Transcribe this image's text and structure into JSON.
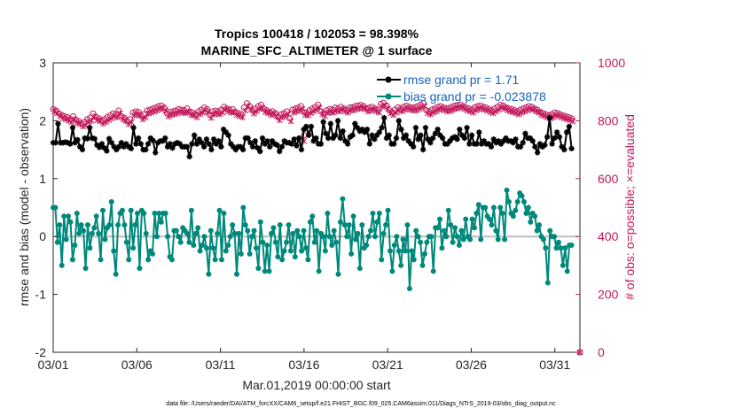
{
  "chart_data": {
    "type": "line",
    "title_line1": "Tropics 100418 / 102053 = 98.398%",
    "title_line2": "MARINE_SFC_ALTIMETER @ 1 surface",
    "ylabel": "rmse and bias (model - observation)",
    "ylabel_right": "# of obs: o=possible; ×=evaluated",
    "xlabel": "Mar.01,2019 00:00:00 start",
    "footnote": "data file: /Users/raeder/DAI/ATM_forcXX/CAM6_setup/f.e21.FHIST_BGC.f09_025.CAM6assim.011/Diags_NTrS_2019-03/obs_diag_output.nc",
    "ylim": [
      -2,
      3
    ],
    "ylim_right": [
      0,
      1000
    ],
    "xlim": [
      0,
      31.5
    ],
    "x_ticks": [
      0,
      5,
      10,
      15,
      20,
      25,
      30
    ],
    "x_tick_labels": [
      "03/01",
      "03/06",
      "03/11",
      "03/16",
      "03/21",
      "03/26",
      "03/31"
    ],
    "y_ticks": [
      -2,
      -1,
      0,
      1,
      2,
      3
    ],
    "y_tick_labels": [
      "-2",
      "-1",
      "0",
      "1",
      "2",
      "3"
    ],
    "y_ticks_right": [
      0,
      200,
      400,
      600,
      800,
      1000
    ],
    "y_tick_labels_right": [
      "0",
      "200",
      "400",
      "600",
      "800",
      "1000"
    ],
    "legend": {
      "rmse": "rmse grand pr = 1.71",
      "bias": "bias grand pr = -0.023878"
    },
    "colors": {
      "rmse": "#000000",
      "bias": "#00897b",
      "obs": "#c2185b",
      "zero_line": "#bdbdbd",
      "legend_text": "#1565c0"
    },
    "rmse": [
      1.62,
      1.62,
      1.95,
      1.62,
      1.62,
      1.63,
      1.62,
      1.6,
      1.88,
      1.62,
      1.67,
      1.55,
      1.5,
      1.7,
      1.69,
      1.88,
      1.7,
      1.69,
      1.58,
      1.54,
      1.6,
      1.53,
      1.48,
      1.69,
      1.62,
      1.55,
      1.5,
      1.55,
      1.62,
      1.55,
      1.6,
      1.55,
      1.52,
      1.88,
      1.6,
      1.7,
      1.6,
      1.5,
      1.5,
      1.6,
      1.7,
      1.66,
      1.45,
      1.62,
      1.65,
      1.65,
      1.7,
      1.55,
      1.6,
      1.53,
      1.6,
      1.62,
      1.6,
      1.55,
      1.55,
      1.55,
      1.38,
      1.6,
      1.75,
      1.6,
      1.68,
      1.62,
      1.55,
      1.68,
      1.6,
      1.5,
      1.68,
      1.6,
      1.65,
      1.55,
      1.85,
      1.8,
      1.75,
      1.6,
      1.55,
      1.5,
      1.55,
      1.55,
      1.5,
      1.7,
      1.7,
      1.62,
      1.55,
      1.65,
      1.53,
      1.47,
      1.7,
      1.6,
      1.65,
      1.55,
      1.65,
      1.6,
      1.58,
      1.47,
      1.55,
      1.65,
      1.62,
      1.62,
      1.6,
      1.68,
      1.57,
      1.7,
      1.5,
      1.85,
      1.9,
      1.75,
      1.9,
      1.65,
      1.7,
      1.6,
      1.6,
      1.98,
      1.78,
      1.7,
      1.95,
      1.7,
      1.75,
      2.0,
      1.7,
      1.82,
      1.65,
      1.6,
      1.72,
      1.75,
      1.95,
      1.88,
      1.82,
      1.85,
      1.8,
      1.85,
      1.6,
      1.75,
      1.68,
      1.75,
      1.8,
      1.88,
      2.05,
      1.7,
      1.75,
      1.6,
      1.6,
      1.7,
      2.0,
      1.85,
      1.7,
      1.75,
      1.65,
      1.6,
      1.55,
      1.88,
      1.68,
      1.75,
      1.5,
      1.88,
      1.68,
      1.62,
      1.7,
      1.78,
      1.85,
      1.75,
      1.7,
      1.6,
      1.6,
      1.65,
      1.7,
      1.72,
      1.68,
      1.85,
      1.75,
      1.7,
      1.88,
      1.6,
      1.75,
      1.6,
      1.6,
      1.8,
      1.6,
      1.65,
      1.6,
      1.6,
      1.55,
      1.68,
      1.62,
      1.65,
      1.6,
      1.65,
      1.7,
      1.65,
      1.65,
      1.62,
      1.68,
      1.55,
      1.55,
      1.62,
      1.78,
      1.7,
      1.7,
      1.65,
      1.55,
      1.45,
      1.6,
      1.55,
      1.58,
      1.72,
      2.05,
      1.6,
      1.7,
      1.8,
      1.72,
      1.55,
      1.5,
      1.8,
      1.9,
      1.52
    ],
    "bias": [
      0.5,
      0.5,
      -0.1,
      0.2,
      -0.5,
      0.35,
      -0.05,
      0.35,
      0.25,
      -0.4,
      -0.15,
      0.4,
      0.05,
      0.2,
      0.1,
      -0.55,
      0.2,
      -0.2,
      0.05,
      0.15,
      0.35,
      0.05,
      -0.4,
      0.45,
      -0.05,
      0.15,
      0.2,
      0.6,
      -0.25,
      -0.65,
      0.2,
      0.4,
      0.45,
      0.2,
      -0.1,
      -0.4,
      0.45,
      -0.2,
      0.2,
      0.4,
      -0.55,
      0.45,
      0.4,
      0.05,
      -0.4,
      -0.25,
      -0.3,
      0.4,
      0.0,
      0.4,
      0.25,
      0.4,
      0.4,
      0.0,
      -0.35,
      -0.4,
      0.1,
      0.1,
      0.0,
      -0.1,
      0.15,
      0.1,
      0.05,
      -0.1,
      0.45,
      -0.15,
      0.05,
      0.15,
      -0.25,
      -0.15,
      0.0,
      -0.2,
      -0.65,
      0.1,
      -0.2,
      -0.4,
      0.05,
      0.45,
      -0.4,
      0.4,
      -0.25,
      -0.15,
      0.0,
      0.2,
      0.05,
      -0.65,
      0.05,
      -0.3,
      0.5,
      0.2,
      0.1,
      -0.3,
      0.0,
      0.1,
      -0.2,
      -0.55,
      0.25,
      -0.1,
      -0.6,
      -0.15,
      -0.6,
      0.05,
      0.15,
      -0.1,
      -0.35,
      0.2,
      -0.4,
      -0.25,
      -0.1,
      0.2,
      -0.25,
      0.05,
      -0.35,
      0.1,
      0.0,
      -0.25,
      0.1,
      -0.2,
      -0.4,
      0.25,
      0.35,
      -0.1,
      0.1,
      -0.6,
      0.05,
      0.0,
      -0.25,
      0.4,
      0.0,
      -0.15,
      0.1,
      -0.1,
      -0.65,
      0.25,
      0.65,
      0.2,
      0.0,
      0.2,
      -0.3,
      0.35,
      -0.05,
      0.05,
      -0.55,
      0.2,
      -0.2,
      -0.15,
      0.0,
      0.1,
      0.4,
      0.0,
      0.25,
      0.4,
      -0.4,
      0.05,
      0.2,
      0.45,
      -0.25,
      -0.6,
      -0.15,
      0.0,
      -0.25,
      -0.5,
      -0.05,
      -0.25,
      0.2,
      -0.9,
      -0.25,
      -0.4,
      0.1,
      0.0,
      -0.1,
      -0.5,
      -0.3,
      -0.1,
      0.0,
      0.0,
      -0.6,
      0.15,
      0.15,
      0.3,
      -0.2,
      0.1,
      0.0,
      0.45,
      0.2,
      -0.1,
      0.15,
      0.0,
      -0.15,
      0.1,
      -0.05,
      0.3,
      0.0,
      -0.05,
      0.3,
      0.15,
      0.4,
      0.55,
      -0.05,
      0.5,
      0.5,
      0.35,
      0.3,
      0.2,
      0.5,
      0.1,
      -0.05,
      0.5,
      0.4,
      -0.05,
      0.8,
      0.6,
      0.4,
      0.35,
      0.45,
      0.6,
      0.75,
      0.7,
      0.6,
      0.4,
      0.5,
      0.25,
      0.4,
      0.35,
      0.1,
      0.2,
      0.0,
      -0.05,
      -0.2,
      -0.8,
      0.1,
      0.0,
      0.0,
      -0.2,
      -0.1,
      -0.2,
      -0.5,
      -0.2,
      -0.6,
      -0.15,
      -0.15
    ],
    "obs_possible": [
      840,
      835,
      825,
      820,
      815,
      812,
      805,
      815,
      802,
      798,
      790,
      795,
      805,
      810,
      825,
      812,
      808,
      800,
      805,
      812,
      818,
      825,
      822,
      835,
      815,
      810,
      798,
      805,
      828,
      832,
      830,
      815,
      822,
      835,
      838,
      842,
      845,
      850,
      852,
      845,
      825,
      830,
      832,
      835,
      840,
      838,
      836,
      842,
      830,
      828,
      822,
      832,
      838,
      845,
      840,
      820,
      832,
      835,
      832,
      838,
      848,
      842,
      838,
      840,
      830,
      826,
      822,
      845,
      860,
      850,
      835,
      842,
      850,
      855,
      840,
      836,
      830,
      832,
      826,
      812,
      822,
      826,
      832,
      808,
      838,
      842,
      845,
      850,
      830,
      828,
      836,
      842,
      848,
      855,
      832,
      826,
      836,
      840,
      838,
      845,
      842,
      848,
      842,
      838,
      845,
      846,
      850,
      852,
      854,
      850,
      842,
      845,
      848,
      842,
      838,
      858,
      862,
      852,
      836,
      830,
      838,
      846,
      842,
      848,
      852,
      848,
      845,
      846,
      850,
      855,
      860,
      836,
      832,
      838,
      842,
      848,
      850,
      846,
      842,
      844,
      848,
      852,
      854,
      856,
      850,
      845,
      842,
      838,
      846,
      850,
      852,
      848,
      845,
      840,
      836,
      842,
      848,
      855,
      852,
      846,
      842,
      840,
      836,
      832,
      838,
      842,
      846,
      850,
      848,
      842,
      838,
      830,
      826,
      822,
      818,
      822,
      828,
      826,
      822,
      818,
      815,
      812,
      808
    ],
    "obs_evaluated": [
      832,
      826,
      815,
      808,
      805,
      800,
      795,
      805,
      792,
      788,
      780,
      785,
      795,
      800,
      815,
      802,
      798,
      790,
      795,
      802,
      808,
      815,
      812,
      825,
      805,
      800,
      788,
      795,
      818,
      822,
      820,
      805,
      812,
      825,
      828,
      832,
      835,
      840,
      842,
      835,
      815,
      820,
      822,
      825,
      830,
      828,
      826,
      832,
      820,
      818,
      812,
      822,
      828,
      835,
      830,
      810,
      822,
      825,
      822,
      828,
      838,
      832,
      828,
      830,
      820,
      816,
      812,
      835,
      850,
      840,
      825,
      832,
      840,
      845,
      830,
      826,
      820,
      822,
      816,
      802,
      812,
      816,
      822,
      798,
      828,
      832,
      835,
      840,
      820,
      818,
      826,
      832,
      838,
      845,
      822,
      816,
      826,
      830,
      828,
      835,
      832,
      838,
      832,
      828,
      835,
      836,
      840,
      842,
      844,
      840,
      832,
      835,
      838,
      832,
      828,
      848,
      852,
      842,
      826,
      820,
      828,
      836,
      832,
      838,
      842,
      838,
      835,
      836,
      840,
      845,
      850,
      826,
      822,
      828,
      832,
      838,
      840,
      836,
      832,
      834,
      838,
      842,
      844,
      846,
      840,
      835,
      832,
      828,
      836,
      840,
      842,
      838,
      835,
      830,
      826,
      832,
      838,
      845,
      842,
      836,
      832,
      830,
      826,
      822,
      828,
      832,
      836,
      840,
      838,
      832,
      828,
      820,
      816,
      812,
      808,
      812,
      818,
      816,
      812,
      808,
      805,
      802,
      798
    ],
    "obs_outliers": {
      "x": [
        15.0,
        15.0,
        31.5
      ],
      "possible": [
        750,
        null,
        0
      ],
      "evaluated": [
        null,
        730,
        0
      ]
    }
  }
}
